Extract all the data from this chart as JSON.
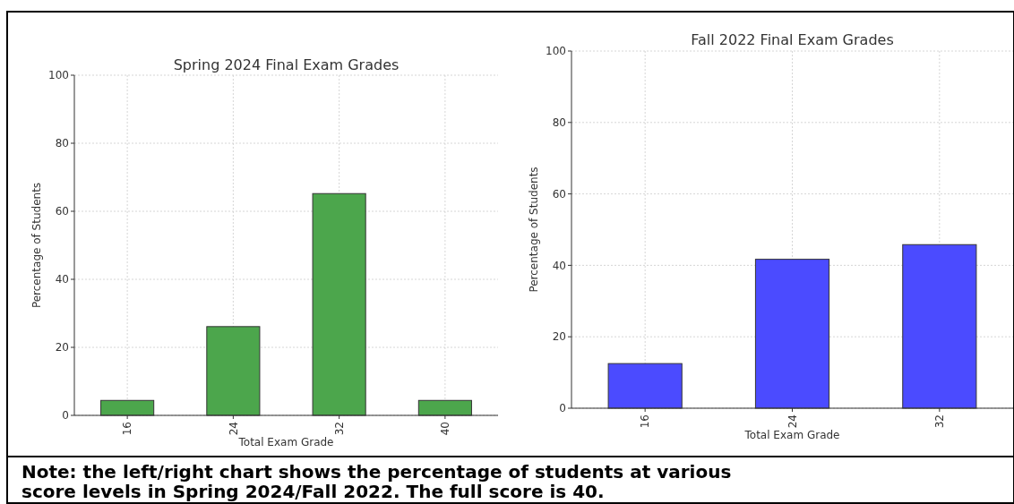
{
  "chart_data": [
    {
      "type": "bar",
      "title": "Spring 2024 Final Exam Grades",
      "xlabel": "Total Exam Grade",
      "ylabel": "Percentage of Students",
      "categories": [
        "16",
        "24",
        "32",
        "40"
      ],
      "values": [
        4.4,
        26.1,
        65.2,
        4.4
      ],
      "color": "#4ca64c",
      "ylim": [
        0,
        100
      ],
      "yticks": [
        0,
        20,
        40,
        60,
        80,
        100
      ],
      "grid": true,
      "annotations": [
        "Note: the left/right chart shows the percentage of students at various score levels in Spring 2024/Fall 2022. The full score is 40."
      ]
    },
    {
      "type": "bar",
      "title": "Fall 2022 Final Exam Grades",
      "xlabel": "Total Exam Grade",
      "ylabel": "Percentage of Students",
      "categories": [
        "16",
        "24",
        "32"
      ],
      "values": [
        12.5,
        41.7,
        45.8
      ],
      "color": "#4b4bff",
      "ylim": [
        0,
        100
      ],
      "yticks": [
        0,
        20,
        40,
        60,
        80,
        100
      ],
      "grid": true
    }
  ]
}
